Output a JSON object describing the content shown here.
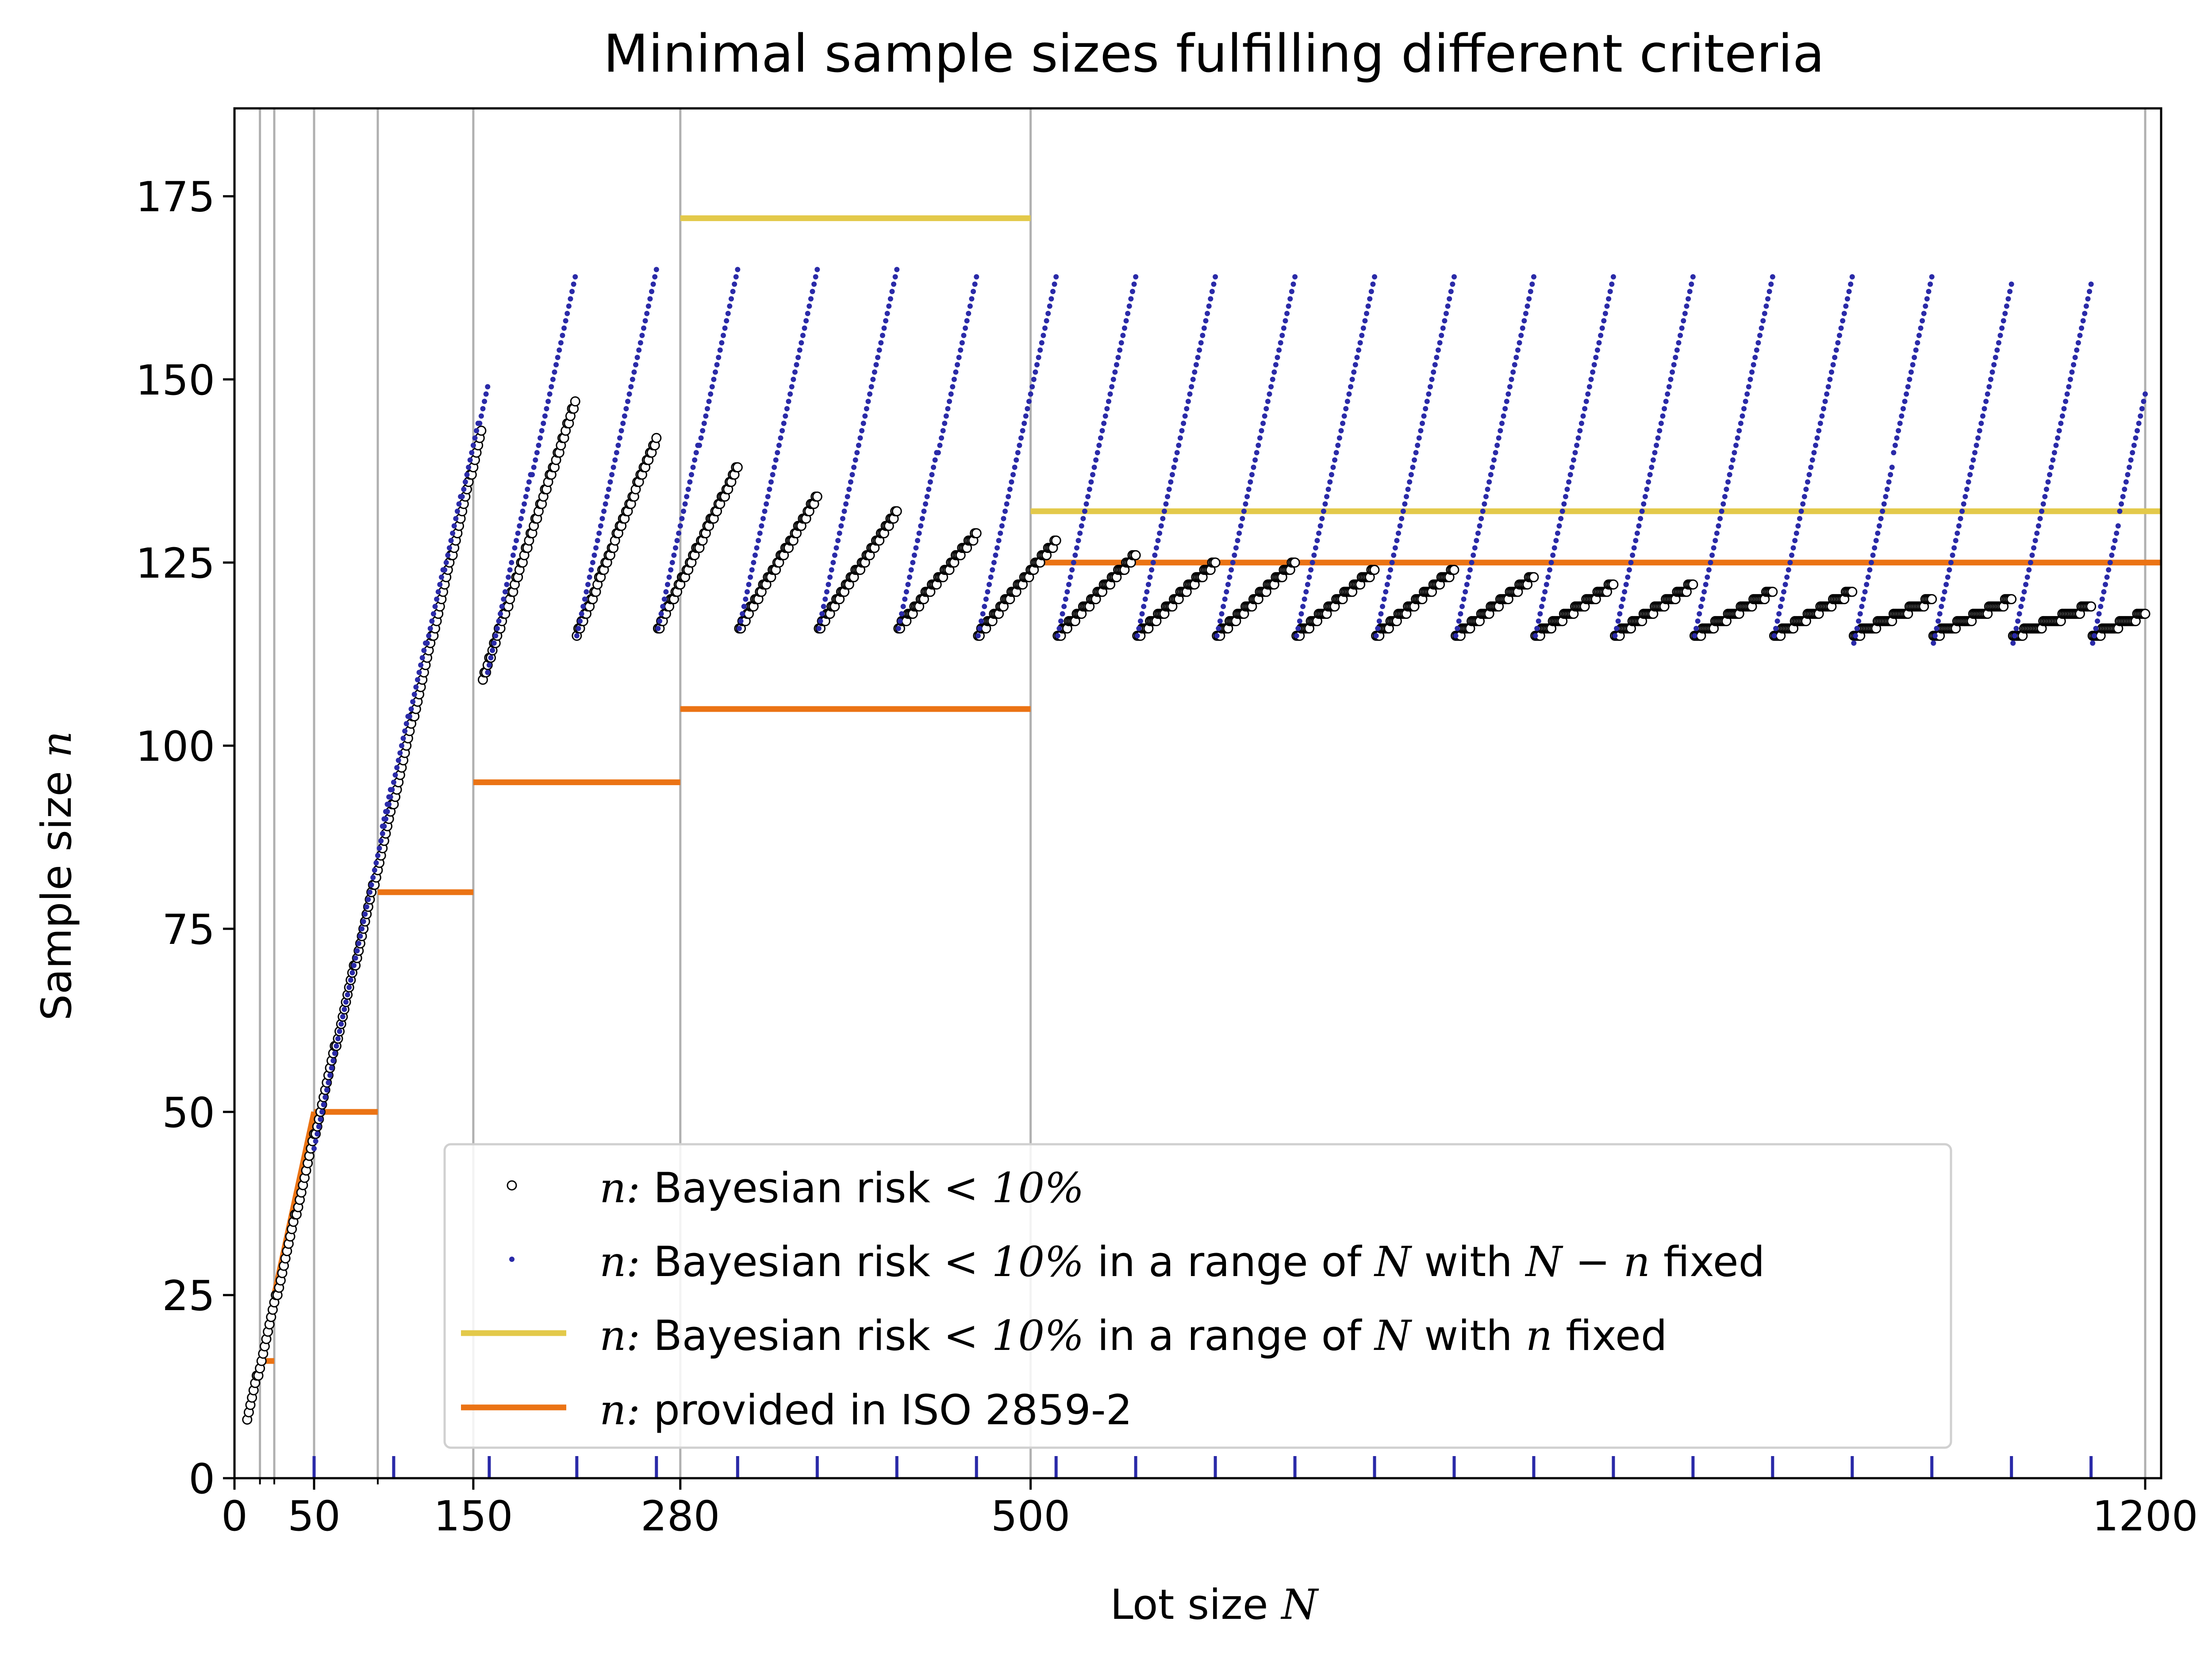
{
  "chart_data": {
    "type": "scatter",
    "title": "Minimal sample sizes fulfilling different criteria",
    "xlabel": "Lot size",
    "xlabel_var": "N",
    "ylabel": "Sample size",
    "ylabel_var": "n",
    "xlim": [
      0,
      1210
    ],
    "ylim": [
      0,
      187
    ],
    "x_ticks": [
      {
        "value": 0,
        "label": "0"
      },
      {
        "value": 50,
        "label": "50"
      },
      {
        "value": 150,
        "label": "150"
      },
      {
        "value": 280,
        "label": "280"
      },
      {
        "value": 500,
        "label": "500"
      },
      {
        "value": 1200,
        "label": "1200"
      }
    ],
    "x_minor_ticks": [
      16,
      25,
      90
    ],
    "y_ticks": [
      0,
      25,
      50,
      75,
      100,
      125,
      150,
      175
    ],
    "vertical_gridlines": [
      16,
      25,
      50,
      90,
      150,
      280,
      500,
      1200
    ],
    "rug_ticks": [
      50,
      100,
      160,
      215,
      265,
      316,
      366,
      416,
      466,
      516,
      566,
      616,
      666,
      716,
      766,
      816,
      866,
      916,
      966,
      1016,
      1066,
      1116,
      1166
    ],
    "legend_position": "lower center",
    "legend": [
      {
        "var": "n",
        "sep": ":",
        "text": "Bayesian risk",
        "op": "<",
        "pct": "10%",
        "suffix": "",
        "marker": "open-circle"
      },
      {
        "var": "n",
        "sep": ":",
        "text": "Bayesian risk",
        "op": "<",
        "pct": "10%",
        "suffix": " in a range of N with N − n fixed",
        "marker": "dot"
      },
      {
        "var": "n",
        "sep": ":",
        "text": "Bayesian risk",
        "op": "<",
        "pct": "10%",
        "suffix": " in a range of N with n fixed",
        "marker": "line-yellow"
      },
      {
        "var": "n",
        "sep": ":",
        "text": "provided in ISO 2859-2",
        "op": "",
        "pct": "",
        "suffix": "",
        "marker": "line-orange"
      }
    ],
    "colors": {
      "bayes": "#000000",
      "range_nminus": "#2a2aa8",
      "range_n": "#e3c94a",
      "iso": "#eb7314",
      "grid": "#b0b0b0"
    },
    "series": [
      {
        "name": "n: Bayesian risk < 10% (open circles)",
        "segments": [
          {
            "x_start": 8,
            "x_end": 155,
            "y_start": 8,
            "y_end": 143
          },
          {
            "x_start": 156,
            "x_end": 214,
            "y_start": 109,
            "y_end": 147
          },
          {
            "x_start": 215,
            "x_end": 265,
            "y_start": 115,
            "y_end": 142
          },
          {
            "x_start": 266,
            "x_end": 316,
            "y_start": 116,
            "y_end": 138
          },
          {
            "x_start": 317,
            "x_end": 366,
            "y_start": 116,
            "y_end": 134
          },
          {
            "x_start": 367,
            "x_end": 416,
            "y_start": 116,
            "y_end": 132
          },
          {
            "x_start": 417,
            "x_end": 466,
            "y_start": 116,
            "y_end": 129
          },
          {
            "x_start": 467,
            "x_end": 516,
            "y_start": 115,
            "y_end": 128
          },
          {
            "x_start": 517,
            "x_end": 566,
            "y_start": 115,
            "y_end": 126
          },
          {
            "x_start": 567,
            "x_end": 616,
            "y_start": 115,
            "y_end": 125
          },
          {
            "x_start": 617,
            "x_end": 666,
            "y_start": 115,
            "y_end": 125
          },
          {
            "x_start": 667,
            "x_end": 716,
            "y_start": 115,
            "y_end": 124
          },
          {
            "x_start": 717,
            "x_end": 766,
            "y_start": 115,
            "y_end": 124
          },
          {
            "x_start": 767,
            "x_end": 816,
            "y_start": 115,
            "y_end": 123
          },
          {
            "x_start": 817,
            "x_end": 866,
            "y_start": 115,
            "y_end": 122
          },
          {
            "x_start": 867,
            "x_end": 916,
            "y_start": 115,
            "y_end": 122
          },
          {
            "x_start": 917,
            "x_end": 966,
            "y_start": 115,
            "y_end": 121
          },
          {
            "x_start": 967,
            "x_end": 1016,
            "y_start": 115,
            "y_end": 121
          },
          {
            "x_start": 1017,
            "x_end": 1066,
            "y_start": 115,
            "y_end": 120
          },
          {
            "x_start": 1067,
            "x_end": 1116,
            "y_start": 115,
            "y_end": 120
          },
          {
            "x_start": 1117,
            "x_end": 1166,
            "y_start": 115,
            "y_end": 119
          },
          {
            "x_start": 1167,
            "x_end": 1200,
            "y_start": 115,
            "y_end": 118
          }
        ]
      },
      {
        "name": "n: Bayesian risk < 10% in a range of N with N − n fixed (dots)",
        "segments": [
          {
            "x_start": 50,
            "x_end": 98,
            "y_start": 45,
            "y_end": 93
          },
          {
            "x_start": 93,
            "x_end": 159,
            "y_start": 89,
            "y_end": 149
          },
          {
            "x_start": 159,
            "x_end": 214,
            "y_start": 110,
            "y_end": 164
          },
          {
            "x_start": 215,
            "x_end": 265,
            "y_start": 115,
            "y_end": 165
          },
          {
            "x_start": 266,
            "x_end": 316,
            "y_start": 116,
            "y_end": 165
          },
          {
            "x_start": 317,
            "x_end": 366,
            "y_start": 116,
            "y_end": 165
          },
          {
            "x_start": 367,
            "x_end": 416,
            "y_start": 116,
            "y_end": 165
          },
          {
            "x_start": 417,
            "x_end": 466,
            "y_start": 116,
            "y_end": 164
          },
          {
            "x_start": 467,
            "x_end": 516,
            "y_start": 115,
            "y_end": 164
          },
          {
            "x_start": 517,
            "x_end": 566,
            "y_start": 115,
            "y_end": 164
          },
          {
            "x_start": 567,
            "x_end": 616,
            "y_start": 115,
            "y_end": 164
          },
          {
            "x_start": 617,
            "x_end": 666,
            "y_start": 115,
            "y_end": 164
          },
          {
            "x_start": 667,
            "x_end": 716,
            "y_start": 115,
            "y_end": 164
          },
          {
            "x_start": 717,
            "x_end": 766,
            "y_start": 115,
            "y_end": 164
          },
          {
            "x_start": 767,
            "x_end": 816,
            "y_start": 115,
            "y_end": 164
          },
          {
            "x_start": 817,
            "x_end": 866,
            "y_start": 115,
            "y_end": 164
          },
          {
            "x_start": 867,
            "x_end": 916,
            "y_start": 115,
            "y_end": 164
          },
          {
            "x_start": 917,
            "x_end": 966,
            "y_start": 115,
            "y_end": 164
          },
          {
            "x_start": 967,
            "x_end": 1016,
            "y_start": 115,
            "y_end": 164
          },
          {
            "x_start": 1017,
            "x_end": 1066,
            "y_start": 114,
            "y_end": 164
          },
          {
            "x_start": 1067,
            "x_end": 1116,
            "y_start": 114,
            "y_end": 163
          },
          {
            "x_start": 1117,
            "x_end": 1166,
            "y_start": 114,
            "y_end": 163
          },
          {
            "x_start": 1167,
            "x_end": 1200,
            "y_start": 114,
            "y_end": 148
          }
        ]
      },
      {
        "name": "n: Bayesian risk < 10% in a range of N with n fixed",
        "segments": [
          {
            "x_start": 280,
            "x_end": 500,
            "y": 172
          },
          {
            "x_start": 500,
            "x_end": 1210,
            "y": 132
          }
        ]
      },
      {
        "name": "n: provided in ISO 2859-2",
        "segments": [
          {
            "x_start": 16,
            "x_end": 25,
            "y": 16
          },
          {
            "x_start": 25,
            "x_end": 50,
            "y_start": 25,
            "y_end": 50
          },
          {
            "x_start": 50,
            "x_end": 90,
            "y": 50
          },
          {
            "x_start": 90,
            "x_end": 150,
            "y": 80
          },
          {
            "x_start": 150,
            "x_end": 280,
            "y": 95
          },
          {
            "x_start": 280,
            "x_end": 500,
            "y": 105
          },
          {
            "x_start": 500,
            "x_end": 1210,
            "y": 125
          }
        ]
      }
    ]
  }
}
